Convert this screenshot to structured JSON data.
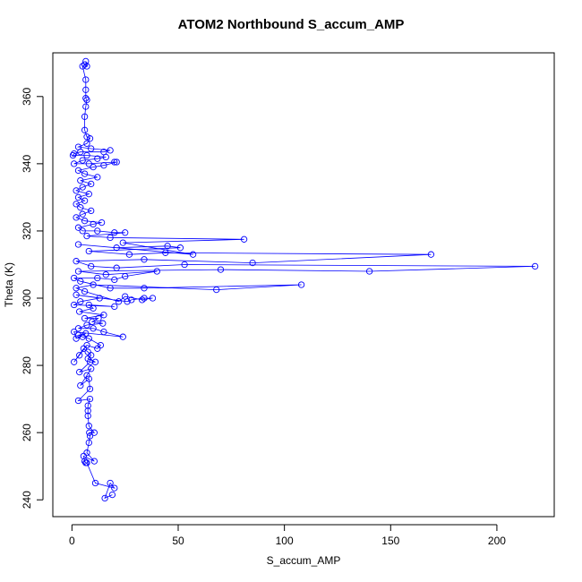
{
  "chart_data": {
    "type": "line",
    "title": "ATOM2 Northbound S_accum_AMP",
    "xlabel": "S_accum_AMP",
    "ylabel": "Theta (K)",
    "xlim": [
      -9,
      227
    ],
    "ylim": [
      235,
      373
    ],
    "x_ticks": [
      "0",
      "50",
      "100",
      "150",
      "200"
    ],
    "y_ticks": [
      "240",
      "260",
      "280",
      "300",
      "320",
      "340",
      "360"
    ],
    "grid": false,
    "marker": "open-circle",
    "colors": {
      "series": "#0000ff",
      "axis": "#000000"
    },
    "series": [
      {
        "name": "",
        "points": [
          [
            19,
            241.5
          ],
          [
            15.5,
            240.5
          ],
          [
            18,
            245
          ],
          [
            20,
            243.5
          ],
          [
            11,
            245
          ],
          [
            7,
            251
          ],
          [
            6.5,
            251
          ],
          [
            6,
            251.5
          ],
          [
            5.5,
            253
          ],
          [
            10.5,
            251.5
          ],
          [
            7,
            254
          ],
          [
            8,
            257
          ],
          [
            8.5,
            259
          ],
          [
            8.2,
            260
          ],
          [
            10.5,
            260
          ],
          [
            8,
            262
          ],
          [
            7.5,
            265
          ],
          [
            7.5,
            266.5
          ],
          [
            7.5,
            268
          ],
          [
            8.5,
            270
          ],
          [
            3,
            269.5
          ],
          [
            8.5,
            273
          ],
          [
            8,
            276
          ],
          [
            4,
            274
          ],
          [
            7,
            277
          ],
          [
            9,
            279
          ],
          [
            3.5,
            278
          ],
          [
            8.5,
            281
          ],
          [
            11,
            281
          ],
          [
            7.5,
            282
          ],
          [
            9,
            283
          ],
          [
            7.5,
            284
          ],
          [
            5.5,
            285
          ],
          [
            1,
            281
          ],
          [
            3.5,
            283
          ],
          [
            7,
            286
          ],
          [
            12,
            285
          ],
          [
            13.5,
            286
          ],
          [
            8,
            288
          ],
          [
            5,
            288.5
          ],
          [
            3,
            289
          ],
          [
            6.5,
            289.5
          ],
          [
            2,
            288
          ],
          [
            1,
            290
          ],
          [
            24,
            288.5
          ],
          [
            15,
            290
          ],
          [
            10,
            291
          ],
          [
            3,
            291
          ],
          [
            7,
            292
          ],
          [
            14.5,
            292.5
          ],
          [
            9.5,
            293
          ],
          [
            12.5,
            294
          ],
          [
            6,
            294
          ],
          [
            15,
            295
          ],
          [
            3.5,
            296
          ],
          [
            10,
            297
          ],
          [
            8,
            298
          ],
          [
            20,
            297.5
          ],
          [
            1,
            298
          ],
          [
            4,
            299
          ],
          [
            13,
            300
          ],
          [
            2,
            301
          ],
          [
            26,
            299
          ],
          [
            28,
            299.5
          ],
          [
            34,
            300
          ],
          [
            38,
            300
          ],
          [
            33,
            299.5
          ],
          [
            25,
            300.5
          ],
          [
            22,
            299
          ],
          [
            6,
            302
          ],
          [
            2,
            303
          ],
          [
            10,
            304
          ],
          [
            68,
            302.5
          ],
          [
            108,
            304
          ],
          [
            34,
            303
          ],
          [
            18,
            303
          ],
          [
            4,
            305
          ],
          [
            1,
            306
          ],
          [
            12,
            306
          ],
          [
            20,
            305.5
          ],
          [
            25,
            306.5
          ],
          [
            40,
            308
          ],
          [
            16,
            307
          ],
          [
            3,
            308
          ],
          [
            70,
            308.5
          ],
          [
            140,
            308
          ],
          [
            218,
            309.5
          ],
          [
            53,
            310
          ],
          [
            21,
            309
          ],
          [
            9,
            309.5
          ],
          [
            2,
            311
          ],
          [
            34,
            311.5
          ],
          [
            85,
            310.5
          ],
          [
            169,
            313
          ],
          [
            44,
            313.5
          ],
          [
            27,
            313
          ],
          [
            8,
            314
          ],
          [
            51,
            315
          ],
          [
            45,
            315.5
          ],
          [
            21,
            315
          ],
          [
            3,
            316
          ],
          [
            57,
            313
          ],
          [
            24,
            316.5
          ],
          [
            81,
            317.5
          ],
          [
            18,
            318
          ],
          [
            7,
            318.5
          ],
          [
            25,
            319.5
          ],
          [
            20,
            319.5
          ],
          [
            12,
            320
          ],
          [
            5,
            320
          ],
          [
            3,
            321
          ],
          [
            10,
            322
          ],
          [
            14,
            322.5
          ],
          [
            6,
            323
          ],
          [
            2,
            324
          ],
          [
            5,
            325
          ],
          [
            9,
            326
          ],
          [
            4,
            327
          ],
          [
            2,
            328
          ],
          [
            6,
            329
          ],
          [
            3,
            330
          ],
          [
            8,
            331
          ],
          [
            2,
            332
          ],
          [
            5,
            333
          ],
          [
            9,
            334
          ],
          [
            4,
            335
          ],
          [
            12,
            336
          ],
          [
            6,
            337
          ],
          [
            3,
            338
          ],
          [
            10,
            339
          ],
          [
            15,
            339.5
          ],
          [
            21,
            340.5
          ],
          [
            20,
            340.5
          ],
          [
            8,
            340
          ],
          [
            1,
            340
          ],
          [
            5,
            341
          ],
          [
            12,
            341.5
          ],
          [
            16,
            342
          ],
          [
            7,
            342.5
          ],
          [
            0.5,
            342.5
          ],
          [
            1,
            343
          ],
          [
            4,
            343.5
          ],
          [
            15,
            343.5
          ],
          [
            18,
            344
          ],
          [
            9,
            344.5
          ],
          [
            3,
            345
          ],
          [
            7,
            346
          ],
          [
            8.5,
            347.5
          ],
          [
            7,
            348
          ],
          [
            6,
            350
          ],
          [
            6,
            354
          ],
          [
            6.5,
            357
          ],
          [
            7,
            359
          ],
          [
            6.5,
            359.5
          ],
          [
            6.5,
            362
          ],
          [
            6.5,
            365
          ],
          [
            5,
            369
          ],
          [
            6,
            369.5
          ],
          [
            7,
            369
          ],
          [
            6.5,
            370.5
          ]
        ]
      }
    ]
  }
}
